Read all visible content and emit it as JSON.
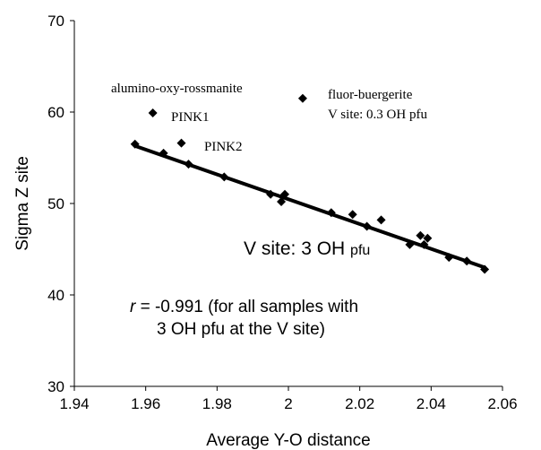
{
  "chart_data": {
    "type": "scatter",
    "xlabel": "Average Y-O distance",
    "ylabel": "Sigma Z site",
    "xlim": [
      1.94,
      2.06
    ],
    "ylim": [
      30,
      70
    ],
    "x_ticks": [
      "1.94",
      "1.96",
      "1.98",
      "2",
      "2.02",
      "2.04",
      "2.06"
    ],
    "y_ticks": [
      "30",
      "40",
      "50",
      "60",
      "70"
    ],
    "grid": false,
    "marker": "diamond",
    "marker_color": "#000000",
    "series": [
      {
        "points": [
          {
            "x": 1.957,
            "y": 56.5
          },
          {
            "x": 1.965,
            "y": 55.5
          },
          {
            "x": 1.972,
            "y": 54.3
          },
          {
            "x": 1.982,
            "y": 52.9
          },
          {
            "x": 1.995,
            "y": 51.0
          },
          {
            "x": 1.998,
            "y": 50.2
          },
          {
            "x": 1.999,
            "y": 51.0
          },
          {
            "x": 2.012,
            "y": 49.0
          },
          {
            "x": 2.018,
            "y": 48.8
          },
          {
            "x": 2.022,
            "y": 47.5
          },
          {
            "x": 2.026,
            "y": 48.2
          },
          {
            "x": 2.034,
            "y": 45.5
          },
          {
            "x": 2.037,
            "y": 46.5
          },
          {
            "x": 2.038,
            "y": 45.5
          },
          {
            "x": 2.039,
            "y": 46.2
          },
          {
            "x": 2.045,
            "y": 44.1
          },
          {
            "x": 2.05,
            "y": 43.7
          },
          {
            "x": 2.055,
            "y": 42.8
          }
        ]
      },
      {
        "points": [
          {
            "x": 1.962,
            "y": 59.9,
            "label": "PINK1"
          },
          {
            "x": 1.97,
            "y": 56.6,
            "label": "PINK2"
          },
          {
            "x": 2.004,
            "y": 61.5
          }
        ]
      }
    ],
    "trendline": {
      "x": [
        1.957,
        2.055
      ],
      "y": [
        56.3,
        43.0
      ]
    },
    "annotations": [
      {
        "text": "alumino-oxy-rossmanite"
      },
      {
        "text": "fluor-buergerite"
      },
      {
        "text": "V site: 0.3 OH pfu"
      },
      {
        "text_main": "V site: 3 OH ",
        "text_small": "pfu"
      },
      {
        "text_italic": "r",
        "text_rest": " = -0.991 (for all samples with"
      },
      {
        "text": "3 OH pfu at the V site)"
      }
    ]
  }
}
